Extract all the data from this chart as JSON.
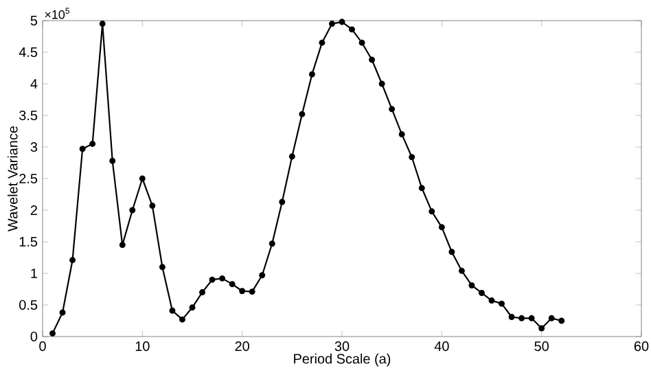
{
  "chart_data": {
    "type": "line",
    "xlabel": "Period Scale (a)",
    "ylabel": "Wavelet Variance",
    "annotations": [
      "×10$^{5}$"
    ],
    "x": [
      1,
      2,
      3,
      4,
      5,
      6,
      7,
      8,
      9,
      10,
      11,
      12,
      13,
      14,
      15,
      16,
      17,
      18,
      19,
      20,
      21,
      22,
      23,
      24,
      25,
      26,
      27,
      28,
      29,
      30,
      31,
      32,
      33,
      34,
      35,
      36,
      37,
      38,
      39,
      40,
      41,
      42,
      43,
      44,
      45,
      46,
      47,
      48,
      49,
      50,
      51,
      52
    ],
    "series": [
      {
        "color": "#000000",
        "values": [
          0.05,
          0.38,
          1.21,
          2.97,
          3.05,
          4.95,
          2.78,
          1.45,
          2.0,
          2.5,
          2.07,
          1.1,
          0.41,
          0.27,
          0.46,
          0.7,
          0.9,
          0.92,
          0.83,
          0.72,
          0.71,
          0.97,
          1.47,
          2.13,
          2.85,
          3.52,
          4.15,
          4.65,
          4.95,
          4.98,
          4.86,
          4.65,
          4.38,
          4.0,
          3.6,
          3.2,
          2.84,
          2.35,
          1.98,
          1.73,
          1.34,
          1.04,
          0.81,
          0.69,
          0.57,
          0.52,
          0.31,
          0.29,
          0.29,
          0.13,
          0.29,
          0.25
        ]
      }
    ],
    "xlim": [
      0,
      60
    ],
    "xticks": [
      0,
      10,
      20,
      30,
      40,
      50,
      60
    ],
    "ylim": [
      0,
      5
    ],
    "yticks": [
      0,
      0.5,
      1,
      1.5,
      2,
      2.5,
      3,
      3.5,
      4,
      4.5,
      5
    ],
    "marker": "circle",
    "line_style": "solid",
    "grid": false
  }
}
